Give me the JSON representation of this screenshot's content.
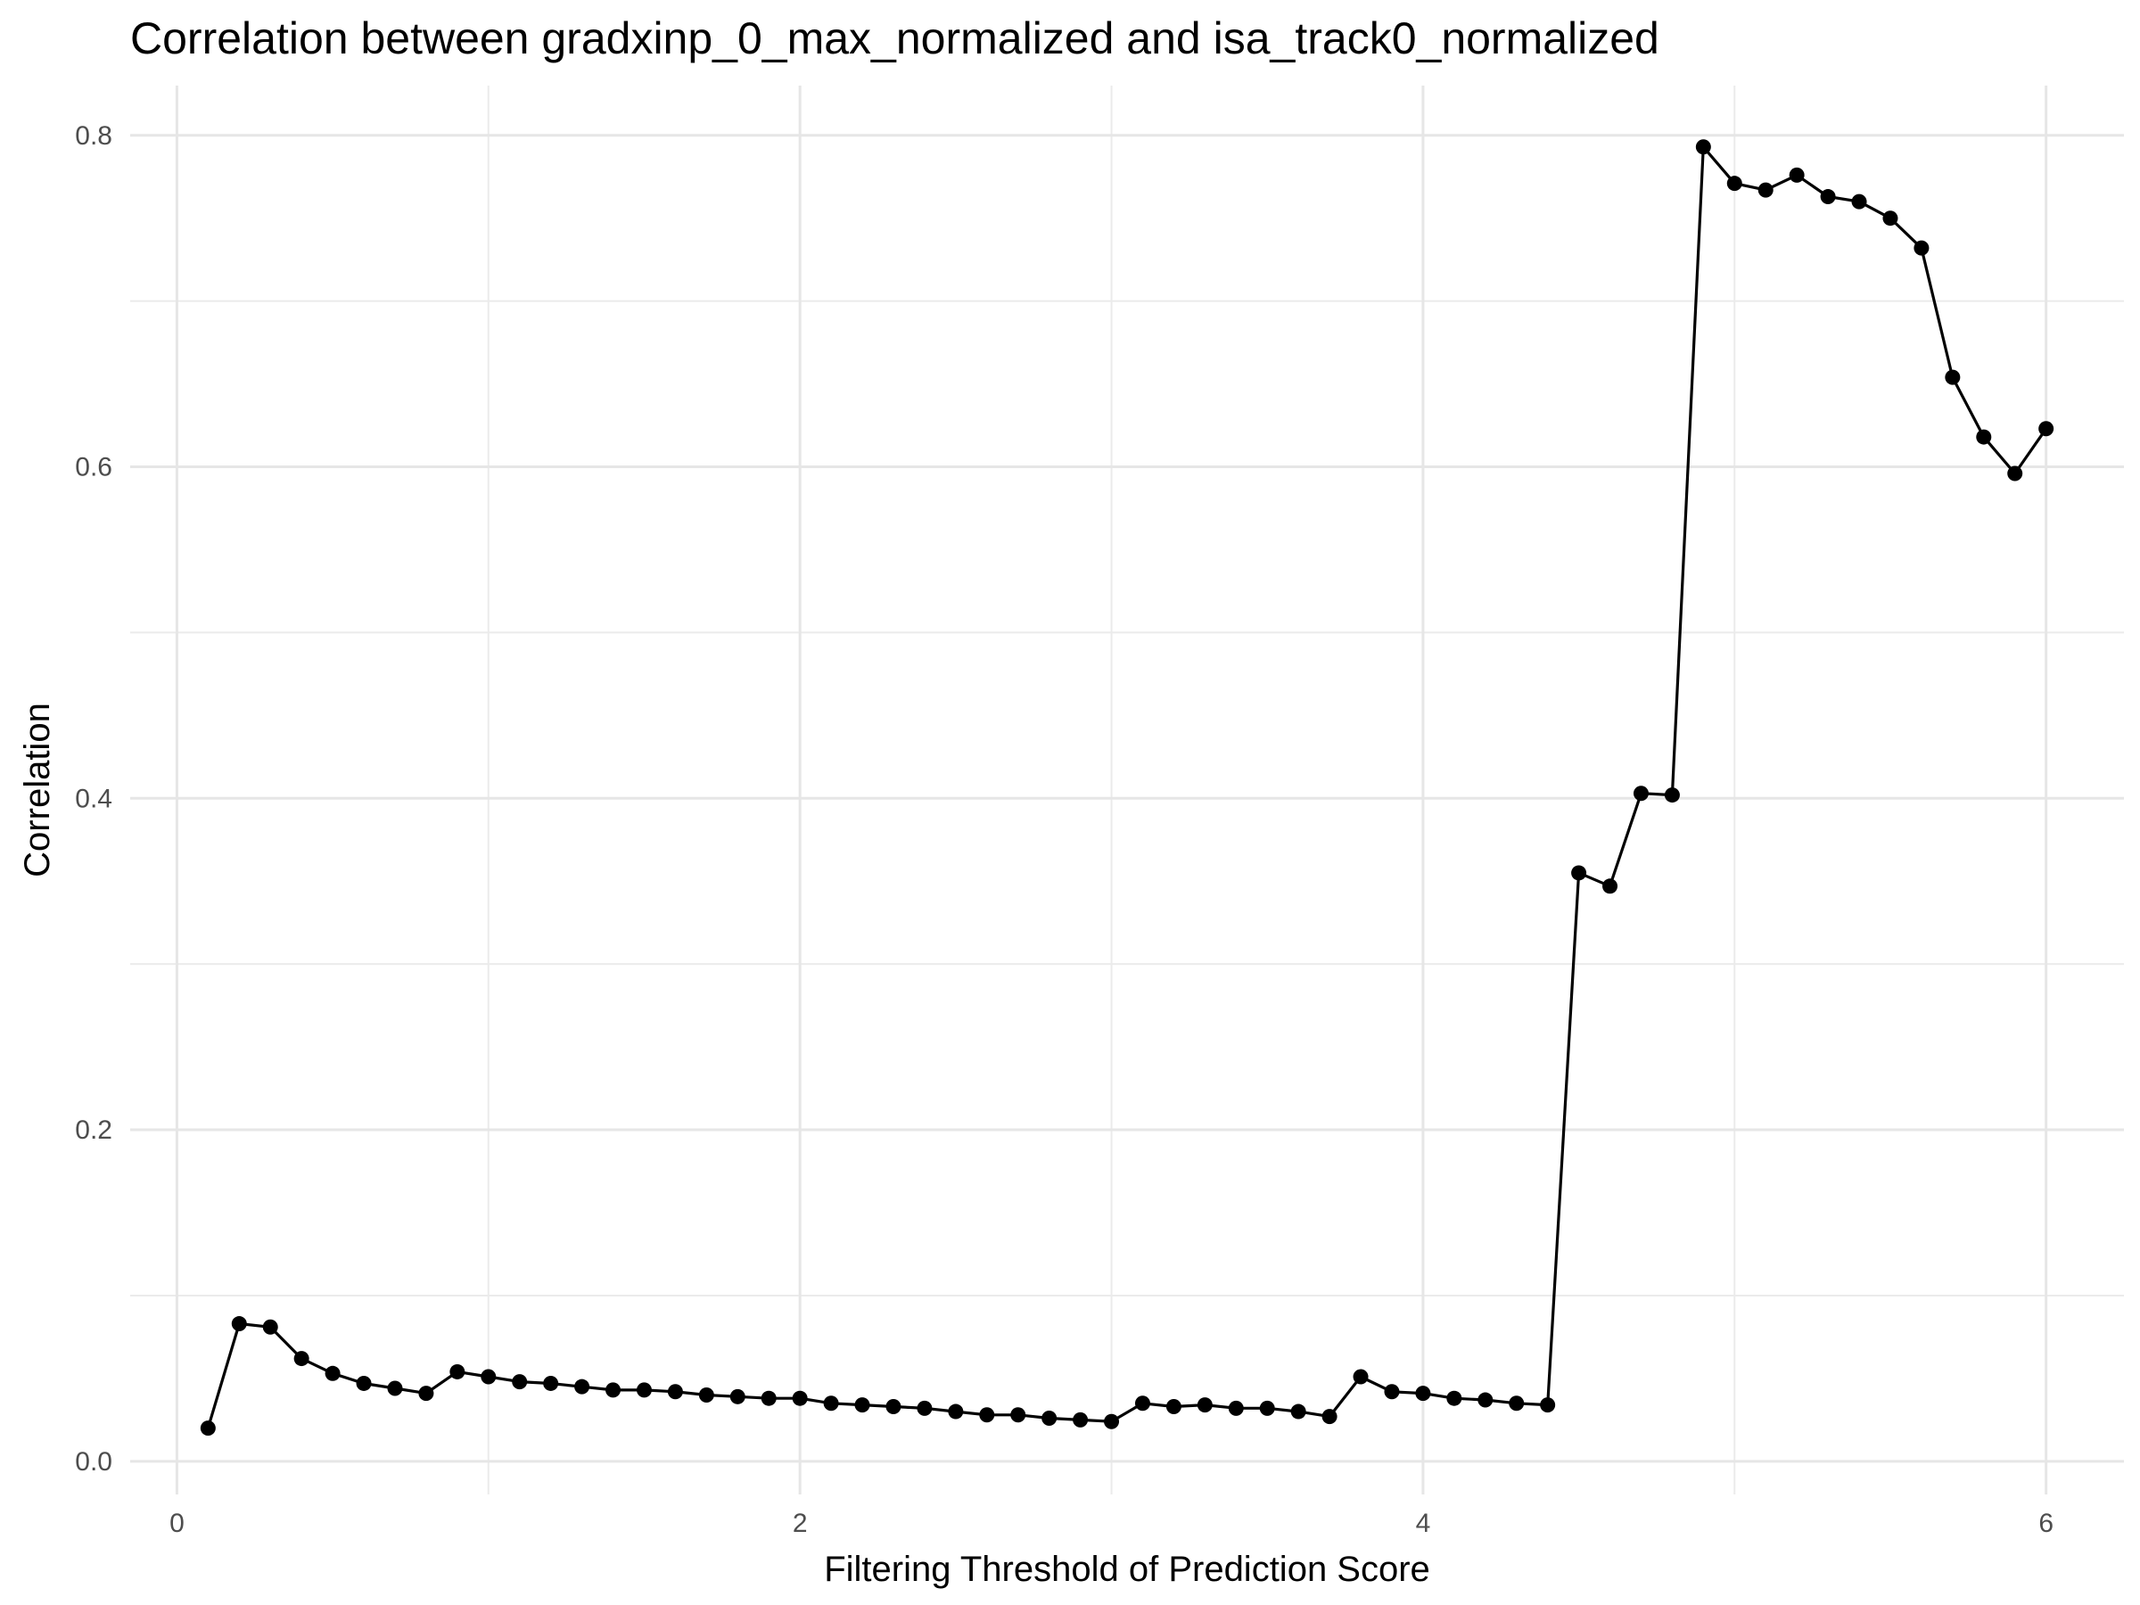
{
  "chart_data": {
    "type": "line",
    "title": "Correlation between gradxinp_0_max_normalized and isa_track0_normalized",
    "xlabel": "Filtering Threshold of Prediction Score",
    "ylabel": "Correlation",
    "xlim": [
      -0.15,
      6.25
    ],
    "ylim": [
      -0.02,
      0.83
    ],
    "x_ticks": [
      0,
      2,
      4,
      6
    ],
    "x_minor_ticks": [
      1,
      3,
      5
    ],
    "y_ticks": [
      0.0,
      0.2,
      0.4,
      0.6,
      0.8
    ],
    "y_minor_ticks": [
      0.1,
      0.3,
      0.5,
      0.7
    ],
    "grid": true,
    "legend": "none",
    "series": [
      {
        "color": "#000000",
        "x": [
          0.1,
          0.2,
          0.3,
          0.4,
          0.5,
          0.6,
          0.7,
          0.8,
          0.9,
          1.0,
          1.1,
          1.2,
          1.3,
          1.4,
          1.5,
          1.6,
          1.7,
          1.8,
          1.9,
          2.0,
          2.1,
          2.2,
          2.3,
          2.4,
          2.5,
          2.6,
          2.7,
          2.8,
          2.9,
          3.0,
          3.1,
          3.2,
          3.3,
          3.4,
          3.5,
          3.6,
          3.7,
          3.8,
          3.9,
          4.0,
          4.1,
          4.2,
          4.3,
          4.4,
          4.5,
          4.6,
          4.7,
          4.8,
          4.9,
          5.0,
          5.1,
          5.2,
          5.3,
          5.4,
          5.5,
          5.6,
          5.7,
          5.8,
          5.9,
          6.0
        ],
        "y": [
          0.02,
          0.083,
          0.081,
          0.062,
          0.053,
          0.047,
          0.044,
          0.041,
          0.054,
          0.051,
          0.048,
          0.047,
          0.045,
          0.043,
          0.043,
          0.042,
          0.04,
          0.039,
          0.038,
          0.038,
          0.035,
          0.034,
          0.033,
          0.032,
          0.03,
          0.028,
          0.028,
          0.026,
          0.025,
          0.024,
          0.035,
          0.033,
          0.034,
          0.032,
          0.032,
          0.03,
          0.027,
          0.051,
          0.042,
          0.041,
          0.038,
          0.037,
          0.035,
          0.034,
          0.355,
          0.347,
          0.403,
          0.402,
          0.793,
          0.771,
          0.767,
          0.776,
          0.763,
          0.76,
          0.75,
          0.732,
          0.654,
          0.618,
          0.596,
          0.623
        ]
      }
    ]
  }
}
